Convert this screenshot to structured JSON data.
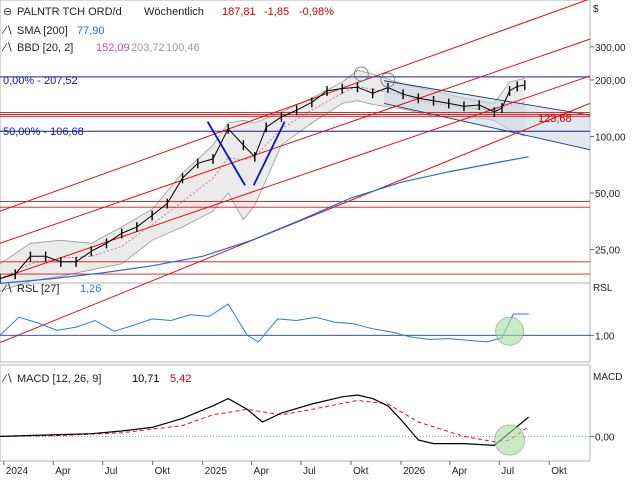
{
  "header": {
    "symbol": "PALNTR TCH ORD/d",
    "period": "Wöchentlich",
    "last": "187,81",
    "change": "-1,85",
    "change_pct": "-0,98%",
    "currency": "$",
    "sma_label": "SMA [200]",
    "sma_value": "77,90",
    "bbd_label": "BBD [20, 2]",
    "bbd_mid": "152,09",
    "bbd_upper": "203,72",
    "bbd_lower": "100,46"
  },
  "annotations": {
    "fib_0": "0,00% - 207,52",
    "fib_50": "50,00% - 106,68",
    "level": "123,68"
  },
  "colors": {
    "price_up": "#000000",
    "price_down": "#000000",
    "sma": "#1e6fd9",
    "bbd": "#999999",
    "bbd_mid": "#c84fa0",
    "trend_red": "#dd1111",
    "fib_blue": "#1a1aa0",
    "annotation_blue": "#1010b0",
    "channel_fill": "#c8d6e0",
    "rsl": "#2a7fd6",
    "macd": "#000000",
    "signal": "#dd1111",
    "highlight_green": "#a8dca0"
  },
  "chart_data": [
    {
      "type": "line",
      "name": "price",
      "title": "PALNTR TCH ORD/d",
      "yscale": "log",
      "ylim": [
        17,
        520
      ],
      "yticks": [
        "25,00",
        "50,00",
        "100,00",
        "200,00",
        "300,00"
      ],
      "ytick_values": [
        25,
        50,
        100,
        200,
        300
      ],
      "xtick_labels": [
        "2024",
        "Apr",
        "Jul",
        "Okt",
        "2025",
        "Apr",
        "Jul",
        "Okt",
        "2026",
        "Apr",
        "Jul",
        "Okt"
      ],
      "xtick_dates": [
        "2024-01-01",
        "2024-04-01",
        "2024-07-01",
        "2024-10-01",
        "2025-01-01",
        "2025-04-01",
        "2025-07-01",
        "2025-10-01",
        "2026-01-01",
        "2026-04-01",
        "2026-07-01",
        "2026-10-01"
      ],
      "xlim": [
        "2023-12-25",
        "2026-12-15"
      ],
      "series": [
        {
          "name": "PALNTR TCH ORD/d",
          "x": [
            "2023-12-25",
            "2024-01-22",
            "2024-02-19",
            "2024-03-18",
            "2024-04-15",
            "2024-05-13",
            "2024-06-10",
            "2024-07-08",
            "2024-08-05",
            "2024-09-02",
            "2024-09-30",
            "2024-10-28",
            "2024-11-25",
            "2024-12-23",
            "2025-01-20",
            "2025-02-17",
            "2025-03-17",
            "2025-04-07",
            "2025-04-28",
            "2025-05-26",
            "2025-06-23",
            "2025-07-21",
            "2025-08-18",
            "2025-09-15",
            "2025-10-13",
            "2025-11-10",
            "2025-12-08",
            "2026-01-05",
            "2026-02-02",
            "2026-03-02",
            "2026-03-30",
            "2026-04-27",
            "2026-05-25",
            "2026-06-22",
            "2026-07-06",
            "2026-07-20",
            "2026-08-03",
            "2026-08-17"
          ],
          "values": [
            17.5,
            18.5,
            23,
            23,
            21.5,
            21.5,
            24.5,
            27,
            30.5,
            33,
            38,
            44,
            60,
            72,
            76,
            110,
            90,
            78,
            112,
            127,
            138,
            152,
            175,
            180,
            183,
            170,
            182,
            168,
            160,
            155,
            150,
            145,
            147,
            135,
            142,
            175,
            185,
            188
          ]
        },
        {
          "name": "SMA [200]",
          "x": [
            "2023-12-25",
            "2024-04-01",
            "2024-07-01",
            "2024-10-01",
            "2025-01-01",
            "2025-04-01",
            "2025-07-01",
            "2025-10-01",
            "2026-01-01",
            "2026-04-01",
            "2026-07-01",
            "2026-08-24"
          ],
          "values": [
            16.5,
            17.5,
            18.8,
            20.5,
            23,
            28,
            36,
            47,
            57,
            65,
            73,
            77.9
          ]
        }
      ],
      "bollinger": {
        "x": [
          "2023-12-25",
          "2024-02-19",
          "2024-04-15",
          "2024-06-10",
          "2024-08-05",
          "2024-09-30",
          "2024-11-25",
          "2025-01-20",
          "2025-02-17",
          "2025-03-17",
          "2025-04-07",
          "2025-05-26",
          "2025-07-21",
          "2025-09-15",
          "2025-10-13",
          "2025-11-10",
          "2026-01-05",
          "2026-03-02",
          "2026-04-27",
          "2026-06-22",
          "2026-07-20",
          "2026-08-17"
        ],
        "upper": [
          21,
          27,
          28,
          27,
          33,
          41,
          64,
          90,
          118,
          122,
          118,
          135,
          160,
          195,
          225,
          215,
          190,
          175,
          160,
          150,
          195,
          203.72
        ],
        "lower": [
          15,
          17,
          18,
          19.5,
          21,
          28,
          33,
          40,
          50,
          36,
          43,
          90,
          118,
          150,
          155,
          148,
          140,
          128,
          128,
          122,
          108,
          100.46
        ],
        "mid": [
          17.5,
          21,
          22.5,
          23,
          26,
          34,
          45,
          60,
          77,
          75,
          78,
          110,
          138,
          170,
          185,
          178,
          165,
          150,
          143,
          137,
          147,
          152.09
        ]
      },
      "channel_lines": [
        {
          "from": [
            "2023-12-25",
            40
          ],
          "to": [
            "2026-12-15",
            540
          ]
        },
        {
          "from": [
            "2023-12-25",
            27
          ],
          "to": [
            "2026-12-15",
            330
          ]
        },
        {
          "from": [
            "2023-12-25",
            17.5
          ],
          "to": [
            "2026-12-15",
            210
          ]
        },
        {
          "from": [
            "2023-12-25",
            8
          ],
          "to": [
            "2026-12-15",
            150
          ]
        }
      ],
      "horizontal_lines": {
        "fib": [
          207.52,
          106.68
        ],
        "red": [
          134,
          131,
          128,
          45,
          42,
          21.5,
          18.5
        ],
        "label_level": 123.68
      },
      "falling_channel": {
        "upper": {
          "from": [
            "2025-12-01",
            198
          ],
          "to": [
            "2026-12-15",
            130
          ]
        },
        "lower": {
          "from": [
            "2025-12-01",
            150
          ],
          "to": [
            "2026-12-15",
            85
          ]
        }
      }
    },
    {
      "type": "line",
      "name": "RSL",
      "title": "RSL [27]",
      "value": "1,26",
      "ylim": [
        0.7,
        1.6
      ],
      "yticks": [
        "1,00"
      ],
      "ytick_values": [
        1.0
      ],
      "series": [
        {
          "name": "RSL [27]",
          "x": [
            "2023-12-25",
            "2024-01-29",
            "2024-03-04",
            "2024-04-08",
            "2024-05-13",
            "2024-06-17",
            "2024-07-22",
            "2024-08-26",
            "2024-09-30",
            "2024-11-04",
            "2024-12-09",
            "2025-01-13",
            "2025-02-17",
            "2025-03-24",
            "2025-04-14",
            "2025-05-19",
            "2025-06-23",
            "2025-07-28",
            "2025-09-01",
            "2025-10-06",
            "2025-11-10",
            "2025-12-15",
            "2026-01-19",
            "2026-02-23",
            "2026-03-30",
            "2026-05-04",
            "2026-06-08",
            "2026-07-06",
            "2026-07-27",
            "2026-08-24"
          ],
          "values": [
            1.0,
            1.22,
            1.15,
            1.06,
            1.1,
            1.18,
            1.05,
            1.12,
            1.2,
            1.18,
            1.25,
            1.23,
            1.38,
            1.0,
            0.92,
            1.2,
            1.18,
            1.22,
            1.16,
            1.14,
            1.08,
            1.04,
            0.98,
            0.95,
            0.96,
            0.94,
            0.92,
            0.97,
            1.26,
            1.26
          ]
        }
      ]
    },
    {
      "type": "line",
      "name": "MACD",
      "title": "MACD [12, 26, 9]",
      "macd_value": "10,71",
      "signal_value": "5,42",
      "ylim": [
        -12,
        38
      ],
      "yticks": [
        "0,00"
      ],
      "ytick_values": [
        0
      ],
      "series": [
        {
          "name": "MACD",
          "x": [
            "2023-12-25",
            "2024-02-19",
            "2024-04-15",
            "2024-06-10",
            "2024-08-05",
            "2024-09-30",
            "2024-11-25",
            "2025-01-20",
            "2025-02-17",
            "2025-03-24",
            "2025-04-21",
            "2025-05-26",
            "2025-07-21",
            "2025-09-15",
            "2025-10-13",
            "2025-11-10",
            "2025-12-08",
            "2026-01-05",
            "2026-02-02",
            "2026-03-02",
            "2026-04-27",
            "2026-06-22",
            "2026-07-20",
            "2026-08-24"
          ],
          "values": [
            0,
            0.5,
            1,
            1.5,
            3,
            5,
            10,
            17,
            21,
            15,
            8,
            13,
            18,
            22,
            23,
            21,
            17,
            8,
            -2,
            -4,
            -4,
            -5,
            2,
            10.71
          ]
        },
        {
          "name": "Signal",
          "x": [
            "2023-12-25",
            "2024-04-15",
            "2024-08-05",
            "2024-11-25",
            "2025-01-20",
            "2025-03-24",
            "2025-05-26",
            "2025-07-21",
            "2025-10-13",
            "2025-12-08",
            "2026-02-02",
            "2026-04-27",
            "2026-06-22",
            "2026-07-20",
            "2026-08-24"
          ],
          "values": [
            0,
            0.5,
            2,
            6,
            12,
            15,
            12,
            15,
            20,
            18,
            8,
            0,
            -3,
            -2,
            5.42
          ]
        }
      ]
    }
  ]
}
